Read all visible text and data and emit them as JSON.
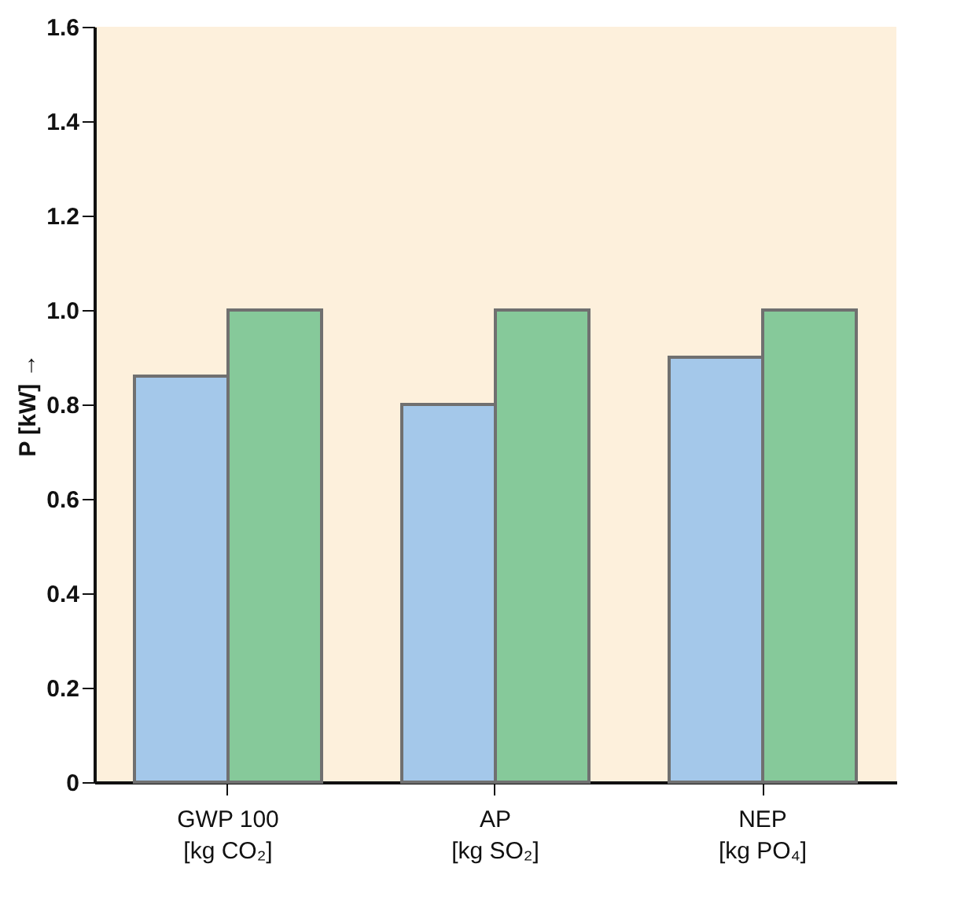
{
  "chart_data": {
    "type": "bar",
    "ylabel": "P [kW] →",
    "categories": [
      "GWP 100\n[kg CO₂]",
      "AP\n[kg SO₂]",
      "NEP\n[kg PO₄]"
    ],
    "series": [
      {
        "color": "#a4c8ea",
        "values": [
          0.86,
          0.8,
          0.9
        ]
      },
      {
        "color": "#86c99a",
        "values": [
          1.0,
          1.0,
          1.0
        ]
      }
    ],
    "ylim": [
      0,
      1.6
    ],
    "yticks": [
      0,
      0.2,
      0.4,
      0.6,
      0.8,
      {
        "value": 1,
        "label": "1.0"
      },
      1.2,
      1.4,
      1.6
    ],
    "grid": false
  }
}
